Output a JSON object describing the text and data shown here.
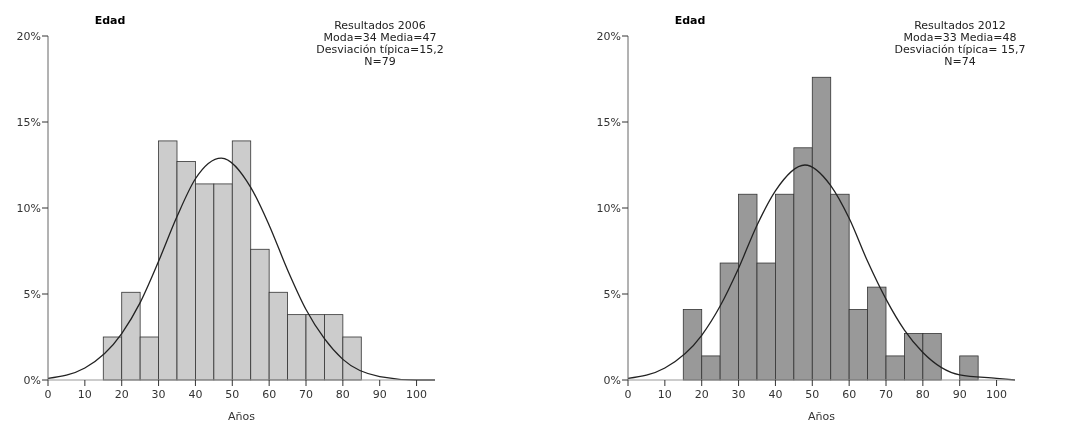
{
  "chart_data": [
    {
      "type": "histogram",
      "title": "Edad",
      "xlabel": "Años",
      "annotations": [
        "Resultados 2006",
        "Moda=34 Media=47",
        "Desviación típica=15,2",
        "N=79"
      ],
      "bins": [
        15,
        20,
        25,
        30,
        35,
        40,
        45,
        50,
        55,
        60,
        65,
        70,
        75,
        80,
        85
      ],
      "series": [
        {
          "color": "#cccccc",
          "values": [
            2.5,
            5.1,
            2.5,
            13.9,
            12.7,
            11.4,
            11.4,
            13.9,
            7.6,
            5.1,
            3.8,
            3.8,
            3.8,
            2.5
          ]
        },
        {
          "type": "line",
          "color": "#222222",
          "x": [
            0,
            10,
            20,
            25,
            30,
            35,
            40,
            47,
            55,
            60,
            65,
            70,
            75,
            80,
            90,
            100,
            105
          ],
          "values": [
            0.1,
            0.7,
            2.7,
            4.5,
            6.9,
            9.5,
            11.7,
            12.9,
            11.2,
            9.0,
            6.4,
            4.1,
            2.4,
            1.2,
            0.2,
            0.0,
            0.0
          ]
        }
      ],
      "xlim": [
        0,
        105
      ],
      "xticks": [
        0,
        10,
        20,
        30,
        40,
        50,
        60,
        70,
        80,
        90,
        100
      ],
      "ylim": [
        0,
        20
      ],
      "yticks": [
        {
          "value": 0,
          "label": "0%"
        },
        {
          "value": 5,
          "label": "5%"
        },
        {
          "value": 10,
          "label": "10%"
        },
        {
          "value": 15,
          "label": "15%"
        },
        {
          "value": 20,
          "label": "20%"
        }
      ]
    },
    {
      "type": "histogram",
      "title": "Edad",
      "xlabel": "Años",
      "annotations": [
        "Resultados 2012",
        "Moda=33  Media=48",
        "Desviación típica= 15,7",
        "N=74"
      ],
      "bins": [
        15,
        20,
        25,
        30,
        35,
        40,
        45,
        50,
        55,
        60,
        65,
        70,
        75,
        80,
        85,
        90,
        95
      ],
      "series": [
        {
          "color": "#999999",
          "values": [
            4.1,
            1.4,
            6.8,
            10.8,
            6.8,
            10.8,
            13.5,
            17.6,
            10.8,
            4.1,
            5.4,
            1.4,
            2.7,
            2.7,
            0,
            1.4
          ]
        },
        {
          "type": "line",
          "color": "#222222",
          "x": [
            0,
            10,
            20,
            25,
            30,
            35,
            40,
            48,
            55,
            60,
            65,
            70,
            75,
            80,
            90,
            100,
            105
          ],
          "values": [
            0.1,
            0.7,
            2.6,
            4.3,
            6.5,
            9.0,
            11.0,
            12.5,
            11.3,
            9.4,
            6.9,
            4.7,
            2.9,
            1.6,
            0.3,
            0.1,
            0.0
          ]
        }
      ],
      "xlim": [
        0,
        105
      ],
      "xticks": [
        0,
        10,
        20,
        30,
        40,
        50,
        60,
        70,
        80,
        90,
        100
      ],
      "ylim": [
        0,
        20
      ],
      "yticks": [
        {
          "value": 0,
          "label": "0%"
        },
        {
          "value": 5,
          "label": "5%"
        },
        {
          "value": 10,
          "label": "10%"
        },
        {
          "value": 15,
          "label": "15%"
        },
        {
          "value": 20,
          "label": "20%"
        }
      ]
    }
  ]
}
